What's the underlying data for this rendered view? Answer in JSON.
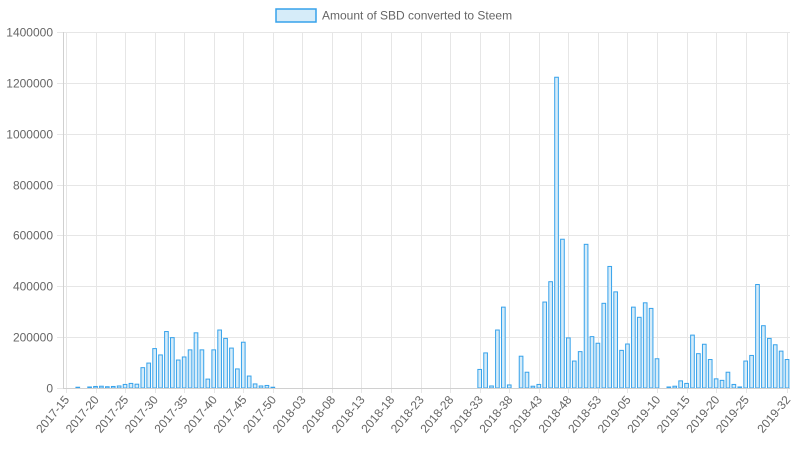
{
  "chart_data": {
    "type": "bar",
    "legend": {
      "label": "Amount of SBD converted to Steem",
      "position": "top-center"
    },
    "colors": {
      "bar_fill": "#d6ecf9",
      "bar_stroke": "#36a2eb",
      "grid": "#e6e6e6",
      "text": "#666666"
    },
    "grid": true,
    "ylim": [
      0,
      1400000
    ],
    "y_ticks": [
      "0",
      "200000",
      "400000",
      "600000",
      "800000",
      "1000000",
      "1200000",
      "1400000"
    ],
    "x_tick_labels": [
      "2017-15",
      "2017-20",
      "2017-25",
      "2017-30",
      "2017-35",
      "2017-40",
      "2017-45",
      "2017-50",
      "2018-03",
      "2018-08",
      "2018-13",
      "2018-18",
      "2018-23",
      "2018-28",
      "2018-33",
      "2018-38",
      "2018-43",
      "2018-48",
      "2018-53",
      "2019-05",
      "2019-10",
      "2019-15",
      "2019-20",
      "2019-25",
      "2019-32"
    ],
    "categories": [
      "2017-15",
      "2017-16",
      "2017-17",
      "2017-18",
      "2017-19",
      "2017-20",
      "2017-21",
      "2017-22",
      "2017-23",
      "2017-24",
      "2017-25",
      "2017-26",
      "2017-27",
      "2017-28",
      "2017-29",
      "2017-30",
      "2017-31",
      "2017-32",
      "2017-33",
      "2017-34",
      "2017-35",
      "2017-36",
      "2017-37",
      "2017-38",
      "2017-39",
      "2017-40",
      "2017-41",
      "2017-42",
      "2017-43",
      "2017-44",
      "2017-45",
      "2017-46",
      "2017-47",
      "2017-48",
      "2017-49",
      "2017-50",
      "2017-51",
      "2017-52",
      "2018-01",
      "2018-02",
      "2018-03",
      "2018-04",
      "2018-05",
      "2018-06",
      "2018-07",
      "2018-08",
      "2018-09",
      "2018-10",
      "2018-11",
      "2018-12",
      "2018-13",
      "2018-14",
      "2018-15",
      "2018-16",
      "2018-17",
      "2018-18",
      "2018-19",
      "2018-20",
      "2018-21",
      "2018-22",
      "2018-23",
      "2018-24",
      "2018-25",
      "2018-26",
      "2018-27",
      "2018-28",
      "2018-29",
      "2018-30",
      "2018-31",
      "2018-32",
      "2018-33",
      "2018-34",
      "2018-35",
      "2018-36",
      "2018-37",
      "2018-38",
      "2018-39",
      "2018-40",
      "2018-41",
      "2018-42",
      "2018-43",
      "2018-44",
      "2018-45",
      "2018-46",
      "2018-47",
      "2018-48",
      "2018-49",
      "2018-50",
      "2018-51",
      "2018-52",
      "2018-53",
      "2019-01",
      "2019-02",
      "2019-03",
      "2019-04",
      "2019-05",
      "2019-06",
      "2019-07",
      "2019-08",
      "2019-09",
      "2019-10",
      "2019-11",
      "2019-12",
      "2019-13",
      "2019-14",
      "2019-15",
      "2019-16",
      "2019-17",
      "2019-18",
      "2019-19",
      "2019-20",
      "2019-21",
      "2019-22",
      "2019-23",
      "2019-24",
      "2019-25",
      "2019-26",
      "2019-27",
      "2019-28",
      "2019-29",
      "2019-30",
      "2019-31",
      "2019-32"
    ],
    "values": [
      0,
      0,
      3000,
      0,
      4000,
      6000,
      7000,
      5000,
      6000,
      8000,
      14000,
      18000,
      15000,
      80000,
      98000,
      155000,
      130000,
      222000,
      198000,
      110000,
      122000,
      150000,
      217000,
      150000,
      35000,
      150000,
      228000,
      195000,
      157000,
      75000,
      180000,
      47000,
      16000,
      8000,
      10000,
      3000,
      0,
      0,
      0,
      0,
      0,
      0,
      0,
      0,
      0,
      0,
      0,
      0,
      0,
      0,
      0,
      0,
      0,
      0,
      0,
      0,
      0,
      0,
      0,
      0,
      0,
      0,
      0,
      0,
      0,
      0,
      0,
      0,
      0,
      0,
      73000,
      138000,
      8000,
      228000,
      318000,
      12000,
      0,
      125000,
      62000,
      7000,
      14000,
      338000,
      418000,
      1222000,
      585000,
      197000,
      106000,
      143000,
      565000,
      202000,
      176000,
      333000,
      478000,
      378000,
      148000,
      173000,
      318000,
      278000,
      335000,
      313000,
      115000,
      0,
      4000,
      7000,
      28000,
      18000,
      208000,
      135000,
      172000,
      112000,
      36000,
      30000,
      62000,
      14000,
      4000,
      106000,
      128000,
      407000,
      245000,
      195000,
      170000,
      145000,
      112000
    ]
  }
}
